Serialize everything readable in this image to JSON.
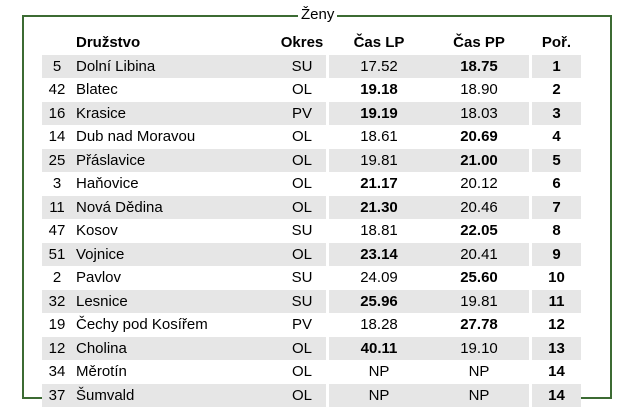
{
  "legend": "Ženy",
  "headers": {
    "num": "",
    "team": "Družstvo",
    "okres": "Okres",
    "lp": "Čas LP",
    "pp": "Čas PP",
    "por": "Poř."
  },
  "rows": [
    {
      "num": "5",
      "team": "Dolní Libina",
      "okres": "SU",
      "lp": "17.52",
      "pp": "18.75",
      "por": "1",
      "best": "pp"
    },
    {
      "num": "42",
      "team": "Blatec",
      "okres": "OL",
      "lp": "19.18",
      "pp": "18.90",
      "por": "2",
      "best": "lp"
    },
    {
      "num": "16",
      "team": "Krasice",
      "okres": "PV",
      "lp": "19.19",
      "pp": "18.03",
      "por": "3",
      "best": "lp"
    },
    {
      "num": "14",
      "team": "Dub nad Moravou",
      "okres": "OL",
      "lp": "18.61",
      "pp": "20.69",
      "por": "4",
      "best": "pp"
    },
    {
      "num": "25",
      "team": "Přáslavice",
      "okres": "OL",
      "lp": "19.81",
      "pp": "21.00",
      "por": "5",
      "best": "pp"
    },
    {
      "num": "3",
      "team": "Haňovice",
      "okres": "OL",
      "lp": "21.17",
      "pp": "20.12",
      "por": "6",
      "best": "lp"
    },
    {
      "num": "11",
      "team": "Nová Dědina",
      "okres": "OL",
      "lp": "21.30",
      "pp": "20.46",
      "por": "7",
      "best": "lp"
    },
    {
      "num": "47",
      "team": "Kosov",
      "okres": "SU",
      "lp": "18.81",
      "pp": "22.05",
      "por": "8",
      "best": "pp"
    },
    {
      "num": "51",
      "team": "Vojnice",
      "okres": "OL",
      "lp": "23.14",
      "pp": "20.41",
      "por": "9",
      "best": "lp"
    },
    {
      "num": "2",
      "team": "Pavlov",
      "okres": "SU",
      "lp": "24.09",
      "pp": "25.60",
      "por": "10",
      "best": "pp"
    },
    {
      "num": "32",
      "team": "Lesnice",
      "okres": "SU",
      "lp": "25.96",
      "pp": "19.81",
      "por": "11",
      "best": "lp"
    },
    {
      "num": "19",
      "team": "Čechy pod Kosířem",
      "okres": "PV",
      "lp": "18.28",
      "pp": "27.78",
      "por": "12",
      "best": "pp"
    },
    {
      "num": "12",
      "team": "Cholina",
      "okres": "OL",
      "lp": "40.11",
      "pp": "19.10",
      "por": "13",
      "best": "lp"
    },
    {
      "num": "34",
      "team": "Měrotín",
      "okres": "OL",
      "lp": "NP",
      "pp": "NP",
      "por": "14",
      "best": ""
    },
    {
      "num": "37",
      "team": "Šumvald",
      "okres": "OL",
      "lp": "NP",
      "pp": "NP",
      "por": "14",
      "best": ""
    }
  ]
}
